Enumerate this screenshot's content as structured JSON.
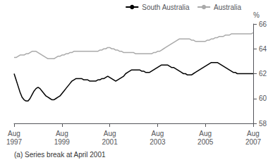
{
  "chart_data": {
    "type": "line",
    "ylabel": "%",
    "annotations": [
      "(a) Series break at April 2001"
    ],
    "categories": [
      "Aug\n1997",
      null,
      null,
      null,
      null,
      null,
      null,
      null,
      null,
      null,
      null,
      null,
      null,
      null,
      null,
      null,
      null,
      null,
      null,
      null,
      null,
      null,
      null,
      null,
      "Aug\n1999",
      null,
      null,
      null,
      null,
      null,
      null,
      null,
      null,
      null,
      null,
      null,
      null,
      null,
      null,
      null,
      null,
      null,
      null,
      null,
      null,
      null,
      null,
      null,
      "Aug\n2001",
      null,
      null,
      null,
      null,
      null,
      null,
      null,
      null,
      null,
      null,
      null,
      null,
      null,
      null,
      null,
      null,
      null,
      null,
      null,
      null,
      null,
      null,
      null,
      "Aug\n2003",
      null,
      null,
      null,
      null,
      null,
      null,
      null,
      null,
      null,
      null,
      null,
      null,
      null,
      null,
      null,
      null,
      null,
      null,
      null,
      null,
      null,
      null,
      null,
      "Aug\n2005",
      null,
      null,
      null,
      null,
      null,
      null,
      null,
      null,
      null,
      null,
      null,
      null,
      null,
      null,
      null,
      null,
      null,
      null,
      null,
      null,
      null,
      null,
      null,
      "Aug\n2007"
    ],
    "series": [
      {
        "name": "South Australia",
        "color": "#000000",
        "values": [
          62.0,
          61.5,
          61.0,
          60.5,
          60.1,
          59.9,
          59.8,
          59.8,
          60.0,
          60.3,
          60.6,
          60.8,
          60.9,
          60.8,
          60.6,
          60.4,
          60.2,
          60.1,
          60.0,
          59.9,
          59.9,
          60.0,
          60.1,
          60.2,
          60.4,
          60.6,
          60.8,
          61.0,
          61.2,
          61.4,
          61.5,
          61.6,
          61.6,
          61.6,
          61.6,
          61.5,
          61.5,
          61.5,
          61.4,
          61.4,
          61.4,
          61.4,
          61.5,
          61.5,
          61.6,
          61.6,
          61.7,
          61.8,
          61.7,
          61.6,
          61.5,
          61.4,
          61.5,
          61.6,
          61.7,
          61.8,
          62.0,
          62.1,
          62.2,
          62.3,
          62.3,
          62.3,
          62.3,
          62.3,
          62.2,
          62.2,
          62.1,
          62.1,
          62.1,
          62.2,
          62.3,
          62.4,
          62.5,
          62.6,
          62.7,
          62.7,
          62.7,
          62.7,
          62.6,
          62.5,
          62.5,
          62.4,
          62.3,
          62.2,
          62.1,
          62.0,
          62.0,
          61.9,
          61.9,
          61.9,
          62.0,
          62.1,
          62.2,
          62.3,
          62.4,
          62.5,
          62.6,
          62.7,
          62.8,
          62.9,
          62.9,
          62.9,
          62.9,
          62.8,
          62.7,
          62.6,
          62.5,
          62.4,
          62.3,
          62.2,
          62.1,
          62.1,
          62.0,
          62.0,
          62.0,
          62.0,
          62.0,
          62.0,
          62.0,
          62.0,
          62.0
        ]
      },
      {
        "name": "Australia",
        "color": "#aaaaaa",
        "values": [
          63.3,
          63.3,
          63.4,
          63.5,
          63.5,
          63.5,
          63.6,
          63.6,
          63.7,
          63.8,
          63.8,
          63.8,
          63.7,
          63.6,
          63.5,
          63.4,
          63.3,
          63.2,
          63.2,
          63.2,
          63.2,
          63.3,
          63.4,
          63.4,
          63.5,
          63.5,
          63.6,
          63.6,
          63.7,
          63.7,
          63.8,
          63.8,
          63.8,
          63.8,
          63.8,
          63.8,
          63.8,
          63.8,
          63.8,
          63.8,
          63.8,
          63.8,
          63.8,
          63.9,
          63.9,
          64.0,
          64.0,
          64.1,
          64.1,
          64.0,
          64.0,
          63.9,
          63.9,
          63.8,
          63.8,
          63.7,
          63.7,
          63.7,
          63.7,
          63.7,
          63.7,
          63.6,
          63.6,
          63.6,
          63.6,
          63.6,
          63.6,
          63.6,
          63.6,
          63.6,
          63.7,
          63.7,
          63.8,
          63.8,
          63.9,
          64.0,
          64.1,
          64.2,
          64.3,
          64.4,
          64.5,
          64.6,
          64.7,
          64.8,
          64.8,
          64.8,
          64.8,
          64.8,
          64.8,
          64.7,
          64.7,
          64.6,
          64.6,
          64.6,
          64.6,
          64.6,
          64.6,
          64.7,
          64.7,
          64.8,
          64.8,
          64.9,
          64.9,
          65.0,
          65.0,
          65.0,
          65.1,
          65.1,
          65.1,
          65.2,
          65.2,
          65.2,
          65.2,
          65.2,
          65.2,
          65.2,
          65.2,
          65.2,
          65.2,
          65.2,
          65.3
        ]
      }
    ],
    "ylim": [
      58,
      66
    ],
    "yticks": [
      58,
      60,
      62,
      64,
      66
    ],
    "grid": false,
    "legend": "upper right"
  }
}
